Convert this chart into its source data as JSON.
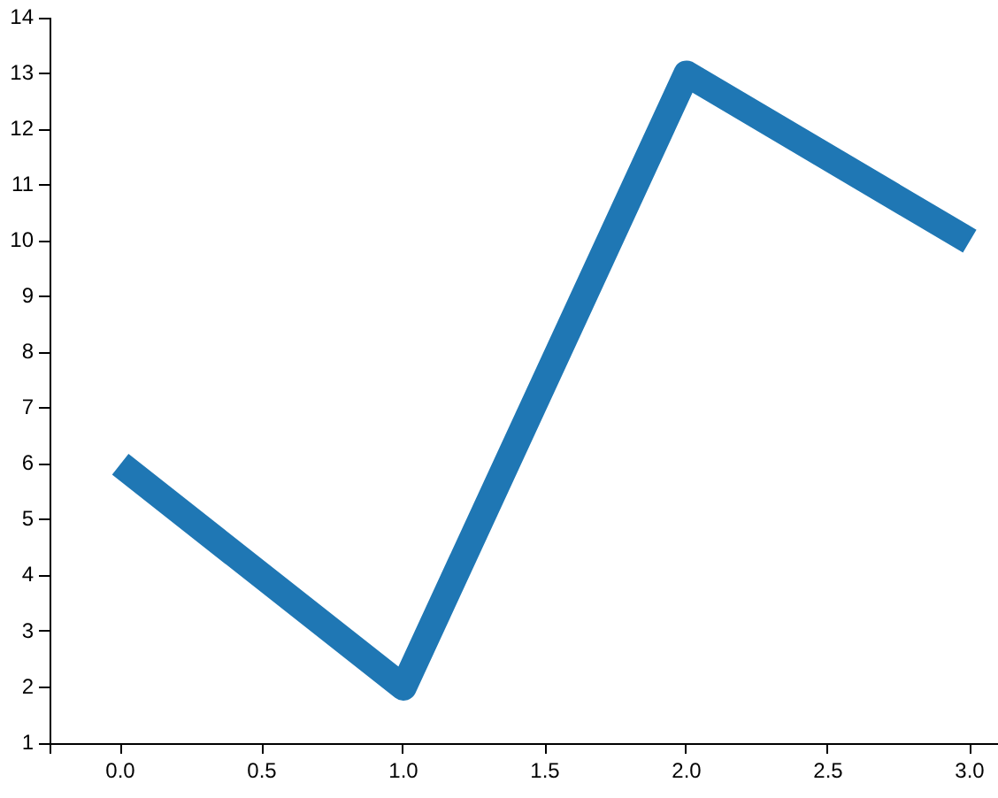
{
  "chart_data": {
    "type": "line",
    "x": [
      0,
      1,
      2,
      3
    ],
    "values": [
      6,
      2,
      13,
      10
    ],
    "color": "#1f77b4",
    "xlim": [
      -0.25,
      3.1
    ],
    "xticks": [
      {
        "value": -0.25,
        "label": null
      },
      {
        "value": 0,
        "label": "0.0"
      },
      0.5,
      {
        "value": 1,
        "label": "1.0"
      },
      1.5,
      {
        "value": 2,
        "label": "2.0"
      },
      2.5,
      {
        "value": 3,
        "label": "3.0"
      }
    ],
    "ylim": [
      1,
      14
    ],
    "yticks": [
      1,
      2,
      3,
      4,
      5,
      6,
      7,
      8,
      9,
      10,
      11,
      12,
      13,
      14
    ],
    "grid": false,
    "marker": "none",
    "line_style": "solid"
  }
}
